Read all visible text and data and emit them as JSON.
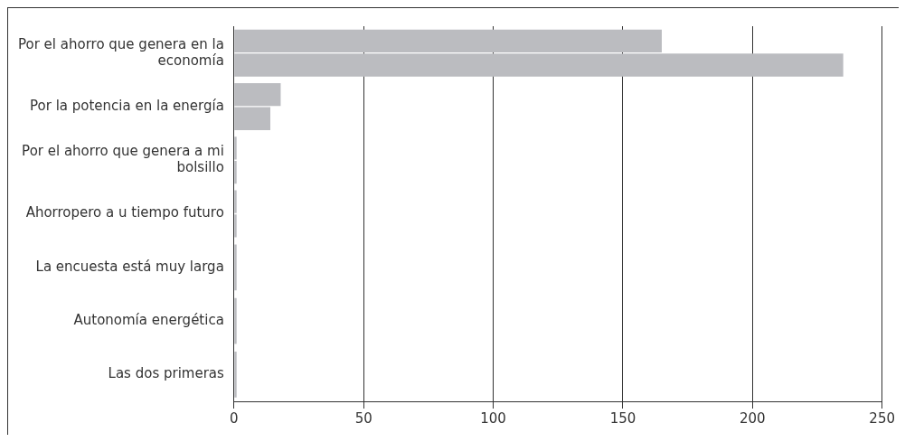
{
  "chart_data": {
    "type": "bar",
    "orientation": "horizontal",
    "categories": [
      "Por el ahorro que genera en la economía",
      "Por la potencia en la energía",
      "Por el ahorro que genera a mi bolsillo",
      "Ahorropero a u tiempo futuro",
      "La encuesta está muy larga",
      "Autonomía energética",
      "Las dos primeras"
    ],
    "series": [
      {
        "color": "#bbbcc0",
        "values": [
          165,
          18,
          1,
          1,
          1,
          1,
          1
        ]
      },
      {
        "color": "#bbbcc0",
        "values": [
          235,
          14,
          1,
          1,
          null,
          null,
          null
        ]
      }
    ],
    "xlim": [
      0,
      250
    ],
    "xticks": [
      0,
      50,
      100,
      150,
      200,
      250
    ],
    "grid": "x",
    "legend": false
  }
}
